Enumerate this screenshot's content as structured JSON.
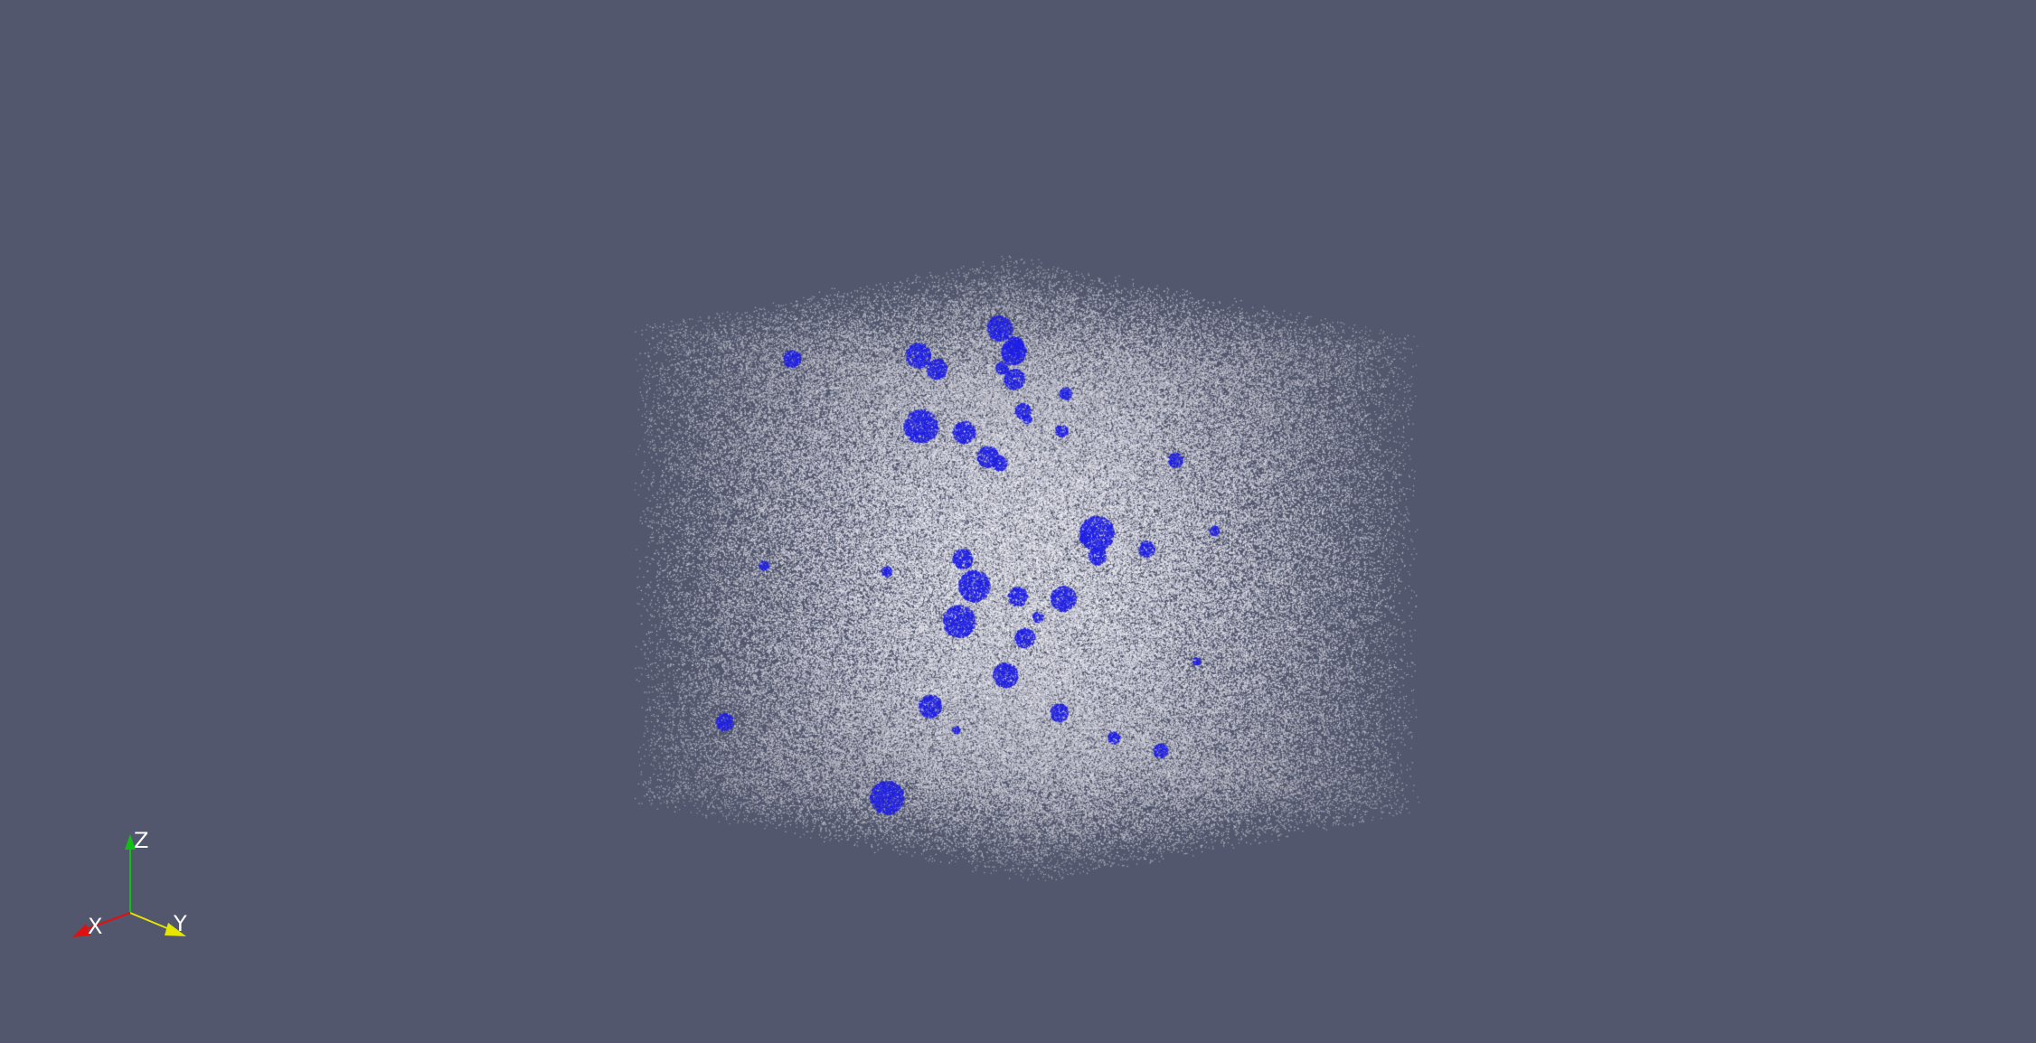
{
  "viewport": {
    "background_color": "#52576e"
  },
  "scene": {
    "object": "point-cloud-cube",
    "point_color": "#ffffff",
    "cluster_color": "#1f1fe6",
    "cluster_count": 40,
    "view": "isometric"
  },
  "orientation_axes": {
    "x": {
      "label": "X",
      "color": "#e01010"
    },
    "y": {
      "label": "Y",
      "color": "#e6e600"
    },
    "z": {
      "label": "Z",
      "color": "#10c010"
    }
  }
}
